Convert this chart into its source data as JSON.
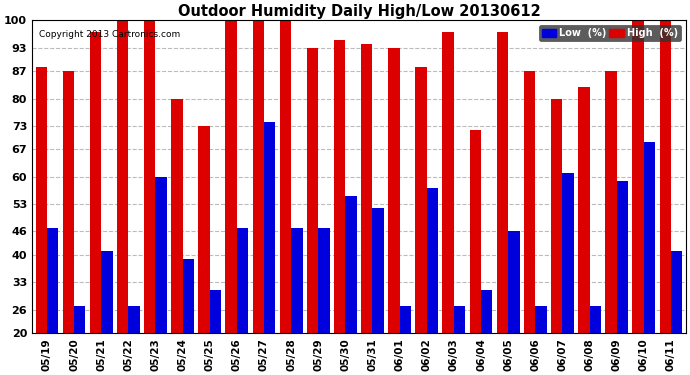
{
  "title": "Outdoor Humidity Daily High/Low 20130612",
  "copyright": "Copyright 2013 Cartronics.com",
  "background_color": "#ffffff",
  "plot_bg_color": "#ffffff",
  "bar_color_low": "#0000dd",
  "bar_color_high": "#dd0000",
  "categories": [
    "05/19",
    "05/20",
    "05/21",
    "05/22",
    "05/23",
    "05/24",
    "05/25",
    "05/26",
    "05/27",
    "05/28",
    "05/29",
    "05/30",
    "05/31",
    "06/01",
    "06/02",
    "06/03",
    "06/04",
    "06/05",
    "06/06",
    "06/07",
    "06/08",
    "06/09",
    "06/10",
    "06/11"
  ],
  "high_values": [
    88,
    87,
    97,
    100,
    100,
    80,
    73,
    100,
    100,
    100,
    93,
    95,
    94,
    93,
    88,
    97,
    72,
    97,
    87,
    80,
    83,
    87,
    100,
    100
  ],
  "low_values": [
    47,
    27,
    41,
    27,
    60,
    39,
    31,
    47,
    74,
    47,
    47,
    55,
    52,
    27,
    57,
    27,
    31,
    46,
    27,
    61,
    27,
    59,
    69,
    41
  ],
  "ymin": 20,
  "ylim": [
    20,
    100
  ],
  "yticks": [
    20,
    26,
    33,
    40,
    46,
    53,
    60,
    67,
    73,
    80,
    87,
    93,
    100
  ],
  "grid_color": "#bbbbbb",
  "grid_style": "--",
  "legend_low_label": "Low  (%)",
  "legend_high_label": "High  (%)"
}
